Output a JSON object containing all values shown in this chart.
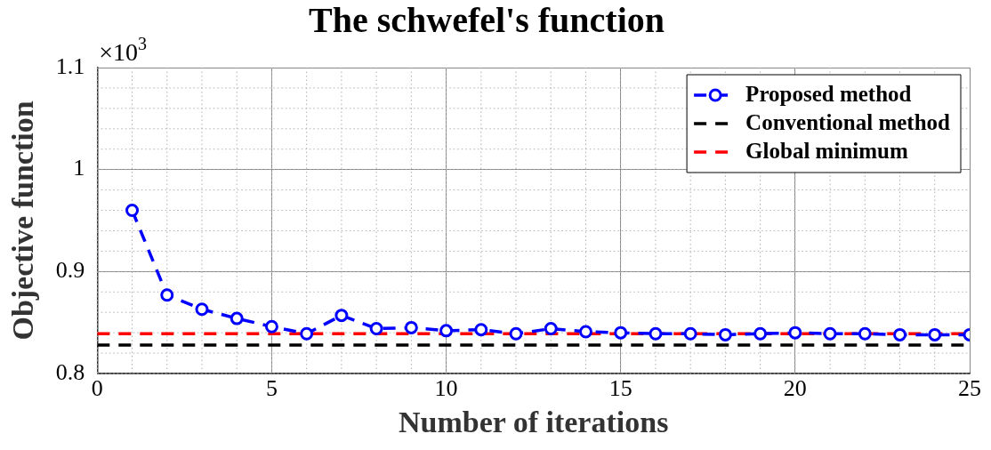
{
  "chart_data": {
    "type": "line",
    "title": "The schwefel's function",
    "xlabel": "Number of iterations",
    "ylabel": "Objective function",
    "annotations": [
      "×10$^{3}$"
    ],
    "x": [
      1,
      2,
      3,
      4,
      5,
      6,
      7,
      8,
      9,
      10,
      11,
      12,
      13,
      14,
      15,
      16,
      17,
      18,
      19,
      20,
      21,
      22,
      23,
      24,
      25
    ],
    "series": [
      {
        "name": "Proposed method",
        "color": "#0000ff",
        "values": [
          0.96,
          0.877,
          0.863,
          0.854,
          0.846,
          0.839,
          0.857,
          0.844,
          0.845,
          0.842,
          0.843,
          0.839,
          0.844,
          0.841,
          0.84,
          0.839,
          0.839,
          0.838,
          0.839,
          0.84,
          0.839,
          0.839,
          0.838,
          0.838,
          0.838
        ]
      }
    ],
    "ref_lines": [
      {
        "axis": "y",
        "value": 0.828,
        "label": "Conventional method",
        "color": "#000000",
        "line_style": "dashed"
      },
      {
        "axis": "y",
        "value": 0.839,
        "label": "Global minimum",
        "color": "#ff0000",
        "line_style": "dashed"
      }
    ],
    "xlim": [
      0,
      25
    ],
    "xticks": [
      0,
      5,
      10,
      15,
      20,
      25
    ],
    "ylim": [
      0.8,
      1.1
    ],
    "yticks": [
      {
        "value": 0.8,
        "label": "0.8"
      },
      {
        "value": 0.9,
        "label": "0.9"
      },
      1,
      {
        "value": 1.1,
        "label": "1.1"
      }
    ],
    "grid": true,
    "legend": "top right",
    "marker": "circle",
    "line_style": "dashed"
  }
}
